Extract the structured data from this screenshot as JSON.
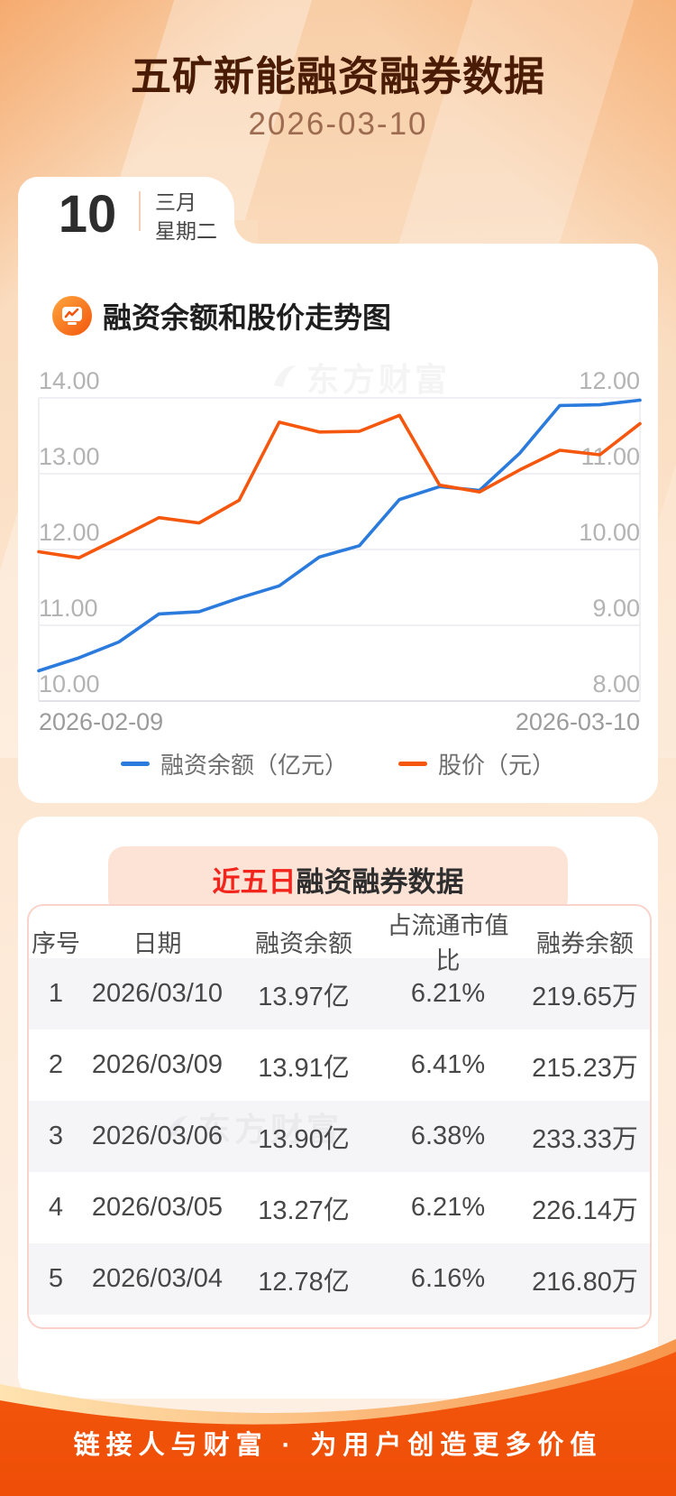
{
  "header": {
    "title": "五矿新能融资融券数据",
    "date": "2026-03-10"
  },
  "date_card": {
    "day": "10",
    "month": "三月",
    "weekday": "星期二"
  },
  "chart_section": {
    "title": "融资余额和股价走势图",
    "watermark": "东方财富",
    "x_start_label": "2026-02-09",
    "x_end_label": "2026-03-10",
    "legend": [
      {
        "label": "融资余额（亿元）",
        "color": "#2b7bdd"
      },
      {
        "label": "股价（元）",
        "color": "#f4570d"
      }
    ]
  },
  "chart_data": {
    "type": "line",
    "title": "融资余额和股价走势图",
    "x_range": [
      "2026-02-09",
      "2026-03-10"
    ],
    "grid": true,
    "legend_position": "bottom",
    "left_axis": {
      "label": "融资余额（亿元）",
      "min": 10,
      "max": 14,
      "ticks": [
        "14.00",
        "13.00",
        "12.00",
        "11.00",
        "10.00"
      ]
    },
    "right_axis": {
      "label": "股价（元）",
      "min": 8,
      "max": 12,
      "ticks": [
        "12.00",
        "11.00",
        "10.00",
        "9.00",
        "8.00"
      ]
    },
    "series": [
      {
        "name": "融资余额（亿元）",
        "axis": "left",
        "color": "#2b7bdd",
        "values": [
          10.4,
          10.57,
          10.78,
          11.15,
          11.18,
          11.36,
          11.52,
          11.9,
          12.05,
          12.66,
          12.83,
          12.78,
          13.27,
          13.9,
          13.91,
          13.97
        ]
      },
      {
        "name": "股价（元）",
        "axis": "right",
        "color": "#f4570d",
        "values": [
          9.97,
          9.89,
          10.15,
          10.42,
          10.35,
          10.65,
          11.68,
          11.55,
          11.56,
          11.77,
          10.85,
          10.76,
          11.05,
          11.31,
          11.25,
          11.66
        ]
      }
    ]
  },
  "table_section": {
    "title_highlight": "近五日",
    "title_rest": "融资融券数据",
    "watermark": "东方财富",
    "columns": [
      "序号",
      "日期",
      "融资余额",
      "占流通市值比",
      "融券余额"
    ],
    "rows": [
      [
        "1",
        "2026/03/10",
        "13.97亿",
        "6.21%",
        "219.65万"
      ],
      [
        "2",
        "2026/03/09",
        "13.91亿",
        "6.41%",
        "215.23万"
      ],
      [
        "3",
        "2026/03/06",
        "13.90亿",
        "6.38%",
        "233.33万"
      ],
      [
        "4",
        "2026/03/05",
        "13.27亿",
        "6.21%",
        "226.14万"
      ],
      [
        "5",
        "2026/03/04",
        "12.78亿",
        "6.16%",
        "216.80万"
      ]
    ]
  },
  "footer": {
    "slogan": "链接人与财富 · 为用户创造更多价值"
  },
  "colors": {
    "accent_orange": "#f4570d",
    "accent_blue": "#2b7bdd",
    "title_brown": "#4a1c06",
    "footer_orange": "#f2540b",
    "banner_red": "#f3241b"
  }
}
